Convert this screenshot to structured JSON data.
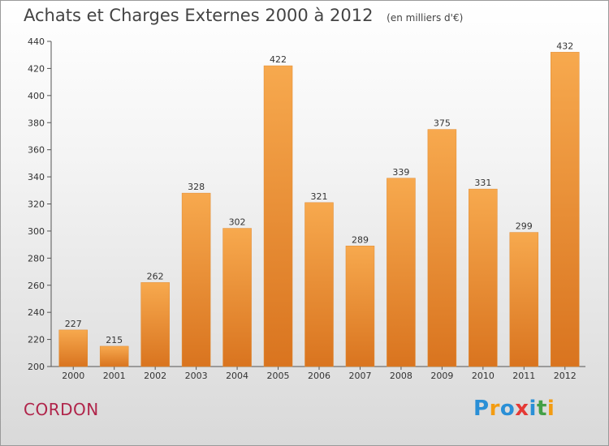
{
  "header": {
    "title": "Achats et Charges Externes 2000 à 2012",
    "unit": "(en milliers d'€)"
  },
  "place_name": "CORDON",
  "logo": {
    "text": "Proxiti",
    "letters": [
      "P",
      "r",
      "o",
      "x",
      "i",
      "t",
      "i"
    ],
    "colors": [
      "#2a8fd6",
      "#f39c12",
      "#2a8fd6",
      "#e53935",
      "#2a8fd6",
      "#43a047",
      "#f39c12"
    ]
  },
  "chart_data": {
    "type": "bar",
    "title": "Achats et Charges Externes 2000 à 2012",
    "subtitle": "(en milliers d'€)",
    "xlabel": "",
    "ylabel": "",
    "categories": [
      "2000",
      "2001",
      "2002",
      "2003",
      "2004",
      "2005",
      "2006",
      "2007",
      "2008",
      "2009",
      "2010",
      "2011",
      "2012"
    ],
    "values": [
      227,
      215,
      262,
      328,
      302,
      422,
      321,
      289,
      339,
      375,
      331,
      299,
      432
    ],
    "ylim": [
      200,
      440
    ],
    "yticks": [
      200,
      220,
      240,
      260,
      280,
      300,
      320,
      340,
      360,
      380,
      400,
      420,
      440
    ],
    "grid": false,
    "colors": {
      "bar_light": "#f7a94e",
      "bar_dark": "#d9741f",
      "axis": "#555555"
    }
  }
}
